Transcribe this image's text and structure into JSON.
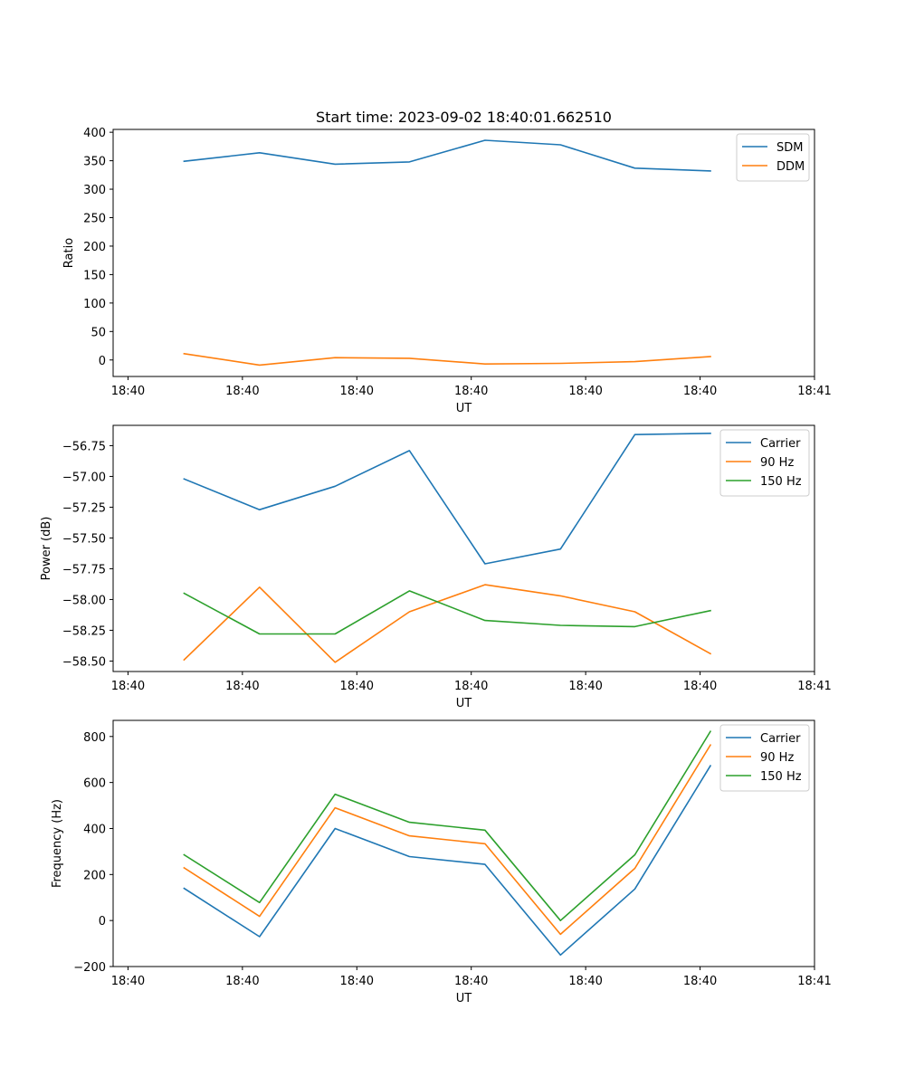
{
  "figure": {
    "title": "Start time: 2023-09-02 18:40:01.662510"
  },
  "colors": {
    "blue": "#1f77b4",
    "orange": "#ff7f0e",
    "green": "#2ca02c"
  },
  "chart_data": [
    {
      "type": "line",
      "title": "Start time: 2023-09-02 18:40:01.662510",
      "xlabel": "UT",
      "ylabel": "Ratio",
      "x_ticks": [
        {
          "pos": 0,
          "label": "18:40"
        },
        {
          "pos": 1,
          "label": "18:40"
        },
        {
          "pos": 2,
          "label": "18:40"
        },
        {
          "pos": 3,
          "label": "18:40"
        },
        {
          "pos": 4,
          "label": "18:40"
        },
        {
          "pos": 5,
          "label": "18:40"
        },
        {
          "pos": 6,
          "label": "18:41"
        }
      ],
      "y_ticks": [
        0,
        50,
        100,
        150,
        200,
        250,
        300,
        350,
        400
      ],
      "y_tick_labels": [
        "0",
        "50",
        "100",
        "150",
        "200",
        "250",
        "300",
        "350",
        "400"
      ],
      "xlim": [
        -0.13,
        6.0
      ],
      "ylim": [
        -29,
        405
      ],
      "x": [
        0.49,
        1.15,
        1.81,
        2.46,
        3.12,
        3.78,
        4.43,
        5.09
      ],
      "series": [
        {
          "name": "SDM",
          "color": "#1f77b4",
          "values": [
            349,
            364,
            344,
            348,
            386,
            378,
            337,
            332
          ]
        },
        {
          "name": "DDM",
          "color": "#ff7f0e",
          "values": [
            11,
            -9,
            4,
            3,
            -7,
            -6,
            -3,
            6
          ]
        }
      ],
      "legend": "upper right"
    },
    {
      "type": "line",
      "title": "",
      "xlabel": "UT",
      "ylabel": "Power (dB)",
      "x_ticks": [
        {
          "pos": 0,
          "label": "18:40"
        },
        {
          "pos": 1,
          "label": "18:40"
        },
        {
          "pos": 2,
          "label": "18:40"
        },
        {
          "pos": 3,
          "label": "18:40"
        },
        {
          "pos": 4,
          "label": "18:40"
        },
        {
          "pos": 5,
          "label": "18:40"
        },
        {
          "pos": 6,
          "label": "18:41"
        }
      ],
      "y_ticks": [
        -58.5,
        -58.25,
        -58.0,
        -57.75,
        -57.5,
        -57.25,
        -57.0,
        -56.75
      ],
      "y_tick_labels": [
        "−58.50",
        "−58.25",
        "−58.00",
        "−57.75",
        "−57.50",
        "−57.25",
        "−57.00",
        "−56.75"
      ],
      "xlim": [
        -0.13,
        6.0
      ],
      "ylim": [
        -58.585,
        -56.585
      ],
      "x": [
        0.49,
        1.15,
        1.81,
        2.46,
        3.12,
        3.78,
        4.43,
        5.09
      ],
      "series": [
        {
          "name": "Carrier",
          "color": "#1f77b4",
          "values": [
            -57.02,
            -57.27,
            -57.08,
            -56.79,
            -57.71,
            -57.59,
            -56.66,
            -56.65
          ]
        },
        {
          "name": "90 Hz",
          "color": "#ff7f0e",
          "values": [
            -58.49,
            -57.9,
            -58.51,
            -58.1,
            -57.88,
            -57.97,
            -58.1,
            -58.44
          ]
        },
        {
          "name": "150 Hz",
          "color": "#2ca02c",
          "values": [
            -57.95,
            -58.28,
            -58.28,
            -57.93,
            -58.17,
            -58.21,
            -58.22,
            -58.09
          ]
        }
      ],
      "legend": "upper right"
    },
    {
      "type": "line",
      "title": "",
      "xlabel": "UT",
      "ylabel": "Frequency (Hz)",
      "x_ticks": [
        {
          "pos": 0,
          "label": "18:40"
        },
        {
          "pos": 1,
          "label": "18:40"
        },
        {
          "pos": 2,
          "label": "18:40"
        },
        {
          "pos": 3,
          "label": "18:40"
        },
        {
          "pos": 4,
          "label": "18:40"
        },
        {
          "pos": 5,
          "label": "18:40"
        },
        {
          "pos": 6,
          "label": "18:41"
        }
      ],
      "y_ticks": [
        -200,
        0,
        200,
        400,
        600,
        800
      ],
      "y_tick_labels": [
        "−200",
        "0",
        "200",
        "400",
        "600",
        "800"
      ],
      "xlim": [
        -0.13,
        6.0
      ],
      "ylim": [
        -200,
        870
      ],
      "x": [
        0.49,
        1.15,
        1.81,
        2.46,
        3.12,
        3.78,
        4.43,
        5.09
      ],
      "series": [
        {
          "name": "Carrier",
          "color": "#1f77b4",
          "values": [
            140,
            -70,
            400,
            278,
            244,
            -150,
            137,
            673
          ]
        },
        {
          "name": "90 Hz",
          "color": "#ff7f0e",
          "values": [
            229,
            18,
            490,
            368,
            334,
            -60,
            227,
            763
          ]
        },
        {
          "name": "150 Hz",
          "color": "#2ca02c",
          "values": [
            286,
            78,
            549,
            427,
            393,
            0,
            286,
            822
          ]
        }
      ],
      "legend": "upper right"
    }
  ]
}
